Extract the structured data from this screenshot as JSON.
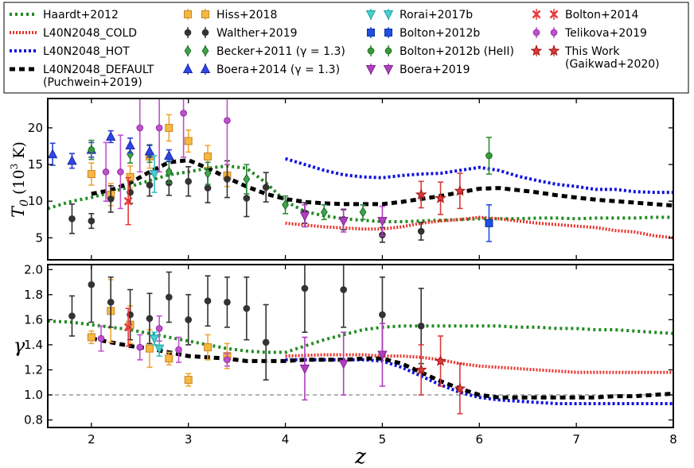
{
  "chart_data": [
    {
      "panel": "top",
      "type": "line+errorbar",
      "xlabel": "z",
      "ylabel": "T_0 (10^3 K)",
      "ylabel_main": "T",
      "ylabel_sub": "0",
      "ylabel_unit": "(10",
      "ylabel_exp": "3",
      "ylabel_tail": " K)",
      "xlim": [
        1.55,
        8.0
      ],
      "ylim": [
        2,
        24
      ],
      "yticks": [
        "5",
        "10",
        "15",
        "20"
      ],
      "lines": {
        "Haardt+2012": {
          "x": [
            1.55,
            1.8,
            2.0,
            2.2,
            2.4,
            2.6,
            2.8,
            3.0,
            3.2,
            3.4,
            3.6,
            3.8,
            4.0,
            4.2,
            4.4,
            4.6,
            4.8,
            5.0,
            5.2,
            5.4,
            5.6,
            5.8,
            6.0,
            6.2,
            6.4,
            6.6,
            6.8,
            7.0,
            7.2,
            7.4,
            7.6,
            7.8,
            8.0
          ],
          "y": [
            9.0,
            10.0,
            10.5,
            11.2,
            12.0,
            12.8,
            13.6,
            14.0,
            14.5,
            14.8,
            14.5,
            12.5,
            10.0,
            8.6,
            8.0,
            7.6,
            7.4,
            7.2,
            7.2,
            7.3,
            7.4,
            7.5,
            7.6,
            7.6,
            7.6,
            7.7,
            7.7,
            7.6,
            7.7,
            7.7,
            7.7,
            7.8,
            7.8
          ]
        },
        "L40N2048_COLD": {
          "x": [
            4.0,
            4.4,
            4.8,
            5.0,
            5.2,
            5.4,
            5.6,
            5.8,
            6.0,
            6.2,
            6.4,
            6.6,
            6.8,
            7.0,
            7.2,
            7.4,
            7.6,
            7.8,
            8.0
          ],
          "y": [
            7.0,
            6.5,
            6.2,
            6.2,
            6.5,
            7.0,
            7.3,
            7.5,
            7.8,
            7.6,
            7.3,
            7.0,
            6.8,
            6.6,
            6.4,
            6.0,
            5.8,
            5.3,
            5.0
          ]
        },
        "L40N2048_HOT": {
          "x": [
            4.0,
            4.2,
            4.4,
            4.6,
            4.8,
            5.0,
            5.2,
            5.4,
            5.6,
            5.8,
            6.0,
            6.2,
            6.4,
            6.6,
            6.8,
            7.0,
            7.2,
            7.4,
            7.6,
            7.8,
            8.0
          ],
          "y": [
            15.8,
            15.0,
            14.2,
            13.6,
            13.3,
            13.2,
            13.5,
            13.7,
            13.8,
            14.2,
            14.6,
            14.2,
            13.4,
            12.8,
            12.3,
            12.0,
            11.6,
            11.6,
            11.3,
            11.2,
            11.2
          ]
        },
        "L40N2048_DEFAULT": {
          "x": [
            2.0,
            2.2,
            2.4,
            2.6,
            2.8,
            3.0,
            3.2,
            3.4,
            3.6,
            3.8,
            4.0,
            4.2,
            4.4,
            4.6,
            4.8,
            5.0,
            5.2,
            5.4,
            5.6,
            5.8,
            6.0,
            6.2,
            6.4,
            6.6,
            6.8,
            7.0,
            7.2,
            7.4,
            7.6,
            7.8,
            8.0
          ],
          "y": [
            11.0,
            11.5,
            12.5,
            14.0,
            15.3,
            15.6,
            14.5,
            13.2,
            12.0,
            11.0,
            10.3,
            9.9,
            9.7,
            9.6,
            9.6,
            9.6,
            9.9,
            10.3,
            10.7,
            11.2,
            11.7,
            11.8,
            11.5,
            11.2,
            10.8,
            10.5,
            10.2,
            10.0,
            9.8,
            9.6,
            9.4
          ]
        }
      },
      "points": {
        "Hiss+2018": [
          [
            2.0,
            13.7,
            1.5
          ],
          [
            2.2,
            10.9,
            1.5
          ],
          [
            2.4,
            13.3,
            1.5
          ],
          [
            2.6,
            16.1,
            1.6
          ],
          [
            2.8,
            20.0,
            1.8
          ],
          [
            3.0,
            18.2,
            1.5
          ],
          [
            3.2,
            16.1,
            1.5
          ],
          [
            3.4,
            13.5,
            1.5
          ]
        ],
        "Walther+2019": [
          [
            1.8,
            7.6,
            2.0
          ],
          [
            2.0,
            7.3,
            1.0
          ],
          [
            2.2,
            10.3,
            1.8
          ],
          [
            2.4,
            11.2,
            1.5
          ],
          [
            2.6,
            12.2,
            1.5
          ],
          [
            2.8,
            12.5,
            1.7
          ],
          [
            3.0,
            12.7,
            2.0
          ],
          [
            3.2,
            11.8,
            2.0
          ],
          [
            3.4,
            13.0,
            2.5
          ],
          [
            3.6,
            10.4,
            2.5
          ],
          [
            3.8,
            11.9,
            2.0
          ],
          [
            4.2,
            8.4,
            1.4
          ],
          [
            4.6,
            7.5,
            1.4
          ],
          [
            5.0,
            5.4,
            1.0
          ],
          [
            5.4,
            5.9,
            1.2
          ]
        ],
        "Becker+2011": [
          [
            2.4,
            16.4,
            1.2
          ],
          [
            2.6,
            16.5,
            1.2
          ],
          [
            2.8,
            14.0,
            1.5
          ],
          [
            3.2,
            13.8,
            1.5
          ],
          [
            3.6,
            13.0,
            2.0
          ],
          [
            4.0,
            9.5,
            1.2
          ],
          [
            4.4,
            8.5,
            1.0
          ],
          [
            4.8,
            8.5,
            1.0
          ]
        ],
        "Boera+2014": [
          [
            1.6,
            16.4,
            1.5
          ],
          [
            1.8,
            15.5,
            1.0
          ],
          [
            2.0,
            17.0,
            1.0
          ],
          [
            2.2,
            18.8,
            0.8
          ],
          [
            2.4,
            17.6,
            1.0
          ],
          [
            2.6,
            16.8,
            0.8
          ],
          [
            2.8,
            16.2,
            0.8
          ]
        ],
        "Rorai+2017b": [
          [
            2.65,
            13.7,
            2.5
          ]
        ],
        "Bolton+2012b": [
          [
            6.1,
            7.0,
            2.5
          ]
        ],
        "Bolton+2012b (HeII)": [
          [
            2.0,
            17.0,
            1.3
          ],
          [
            6.1,
            16.2,
            2.5
          ]
        ],
        "Boera+2019": [
          [
            4.2,
            8.0,
            1.5
          ],
          [
            4.6,
            7.3,
            1.5
          ],
          [
            5.0,
            7.3,
            2.0
          ]
        ],
        "Bolton+2014": [
          [
            2.38,
            10.0,
            3.2
          ]
        ],
        "Telikova+2019": [
          [
            2.15,
            14.0,
            4.0
          ],
          [
            2.3,
            14.0,
            5.0
          ],
          [
            2.5,
            20.0,
            6.0
          ],
          [
            2.7,
            20.0,
            6.0
          ],
          [
            2.95,
            22.0,
            6.0
          ],
          [
            3.4,
            21.0,
            6.0
          ]
        ],
        "This Work (Gaikwad+2020)": [
          [
            5.4,
            10.9,
            1.8
          ],
          [
            5.6,
            10.4,
            2.2
          ],
          [
            5.8,
            11.4,
            2.4
          ]
        ]
      }
    },
    {
      "panel": "bottom",
      "type": "line+errorbar",
      "xlabel": "z",
      "ylabel": "γ",
      "xlim": [
        1.55,
        8.0
      ],
      "ylim": [
        0.74,
        2.04
      ],
      "xticks": [
        "2",
        "3",
        "4",
        "5",
        "6",
        "7",
        "8"
      ],
      "yticks": [
        "0.8",
        "1.0",
        "1.2",
        "1.4",
        "1.6",
        "1.8",
        "2.0"
      ],
      "reference_line": 1.0,
      "lines": {
        "Haardt+2012": {
          "x": [
            1.55,
            1.8,
            2.0,
            2.2,
            2.4,
            2.6,
            2.8,
            3.0,
            3.2,
            3.4,
            3.6,
            3.8,
            4.0,
            4.2,
            4.4,
            4.6,
            4.8,
            5.0,
            5.2,
            5.4,
            5.6,
            5.8,
            6.0,
            6.2,
            6.4,
            6.6,
            6.8,
            7.0,
            7.2,
            7.4,
            7.6,
            7.8,
            8.0
          ],
          "y": [
            1.59,
            1.58,
            1.56,
            1.54,
            1.52,
            1.49,
            1.46,
            1.43,
            1.4,
            1.37,
            1.35,
            1.34,
            1.34,
            1.39,
            1.44,
            1.48,
            1.52,
            1.54,
            1.55,
            1.55,
            1.55,
            1.55,
            1.55,
            1.55,
            1.54,
            1.54,
            1.53,
            1.53,
            1.52,
            1.52,
            1.51,
            1.5,
            1.49
          ]
        },
        "L40N2048_COLD": {
          "x": [
            4.0,
            4.4,
            4.8,
            5.0,
            5.2,
            5.4,
            5.6,
            5.8,
            6.0,
            6.2,
            6.4,
            6.6,
            6.8,
            7.0,
            7.2,
            7.4,
            7.6,
            7.8,
            8.0
          ],
          "y": [
            1.31,
            1.32,
            1.32,
            1.31,
            1.31,
            1.3,
            1.28,
            1.25,
            1.23,
            1.22,
            1.21,
            1.2,
            1.19,
            1.18,
            1.18,
            1.18,
            1.18,
            1.18,
            1.18
          ]
        },
        "L40N2048_HOT": {
          "x": [
            4.0,
            4.4,
            4.8,
            5.0,
            5.2,
            5.4,
            5.6,
            5.8,
            6.0,
            6.2,
            6.4,
            6.6,
            6.8,
            7.0,
            7.2,
            7.4,
            7.6,
            7.8,
            8.0
          ],
          "y": [
            1.28,
            1.28,
            1.28,
            1.27,
            1.22,
            1.15,
            1.08,
            1.02,
            0.98,
            0.96,
            0.95,
            0.94,
            0.93,
            0.93,
            0.93,
            0.93,
            0.93,
            0.93,
            0.93
          ]
        },
        "L40N2048_DEFAULT": {
          "x": [
            2.0,
            2.2,
            2.4,
            2.6,
            2.8,
            3.0,
            3.2,
            3.4,
            3.6,
            3.8,
            4.0,
            4.2,
            4.4,
            4.6,
            4.8,
            5.0,
            5.2,
            5.4,
            5.6,
            5.8,
            6.0,
            6.2,
            6.4,
            6.6,
            6.8,
            7.0,
            7.2,
            7.4,
            7.6,
            7.8,
            8.0
          ],
          "y": [
            1.45,
            1.42,
            1.39,
            1.37,
            1.34,
            1.31,
            1.3,
            1.29,
            1.27,
            1.27,
            1.27,
            1.28,
            1.28,
            1.28,
            1.29,
            1.29,
            1.25,
            1.18,
            1.11,
            1.05,
            1.0,
            0.98,
            0.98,
            0.98,
            0.98,
            0.98,
            0.98,
            0.99,
            0.99,
            1.0,
            1.01
          ]
        }
      },
      "points": {
        "Hiss+2018": [
          [
            2.0,
            1.46,
            0.05
          ],
          [
            2.2,
            1.67,
            0.25
          ],
          [
            2.4,
            1.56,
            0.15
          ],
          [
            2.6,
            1.37,
            0.15
          ],
          [
            2.8,
            1.29,
            0.05
          ],
          [
            3.0,
            1.12,
            0.05
          ],
          [
            3.2,
            1.38,
            0.1
          ],
          [
            3.4,
            1.31,
            0.1
          ]
        ],
        "Walther+2019": [
          [
            1.8,
            1.63,
            0.16
          ],
          [
            2.0,
            1.88,
            0.3
          ],
          [
            2.2,
            1.74,
            0.2
          ],
          [
            2.4,
            1.64,
            0.2
          ],
          [
            2.6,
            1.61,
            0.2
          ],
          [
            2.8,
            1.78,
            0.2
          ],
          [
            3.0,
            1.6,
            0.2
          ],
          [
            3.2,
            1.75,
            0.2
          ],
          [
            3.4,
            1.74,
            0.2
          ],
          [
            3.6,
            1.69,
            0.25
          ],
          [
            3.8,
            1.42,
            0.3
          ],
          [
            4.2,
            1.85,
            0.35
          ],
          [
            4.6,
            1.84,
            0.3
          ],
          [
            5.0,
            1.64,
            0.3
          ],
          [
            5.4,
            1.55,
            0.3
          ]
        ],
        "Becker+2011": [],
        "Boera+2014": [],
        "Rorai+2017b": [
          [
            2.65,
            1.45,
            0.05
          ],
          [
            2.7,
            1.37,
            0.06
          ]
        ],
        "Bolton+2012b": [],
        "Bolton+2012b (HeII)": [],
        "Boera+2019": [
          [
            4.2,
            1.21,
            0.25
          ],
          [
            4.6,
            1.25,
            0.25
          ],
          [
            5.0,
            1.32,
            0.25
          ]
        ],
        "Bolton+2014": [
          [
            2.38,
            1.54,
            0.15
          ]
        ],
        "Telikova+2019": [
          [
            2.1,
            1.45,
            0.1
          ],
          [
            2.5,
            1.38,
            0.1
          ],
          [
            2.7,
            1.53,
            0.1
          ],
          [
            2.9,
            1.36,
            0.1
          ],
          [
            3.4,
            1.28,
            0.05
          ]
        ],
        "This Work (Gaikwad+2020)": [
          [
            5.4,
            1.2,
            0.2
          ],
          [
            5.6,
            1.27,
            0.2
          ],
          [
            5.8,
            1.05,
            0.2
          ]
        ]
      }
    }
  ],
  "legend": [
    {
      "label": "Haardt+2012",
      "kind": "line",
      "key": "Haardt+2012",
      "color": "#228b22",
      "dash": "3,4",
      "width": 4
    },
    {
      "label": "L40N2048_COLD",
      "kind": "line",
      "key": "L40N2048_COLD",
      "color": "#e8322a",
      "dash": "2,2",
      "width": 4
    },
    {
      "label": "L40N2048_HOT",
      "kind": "line",
      "key": "L40N2048_HOT",
      "color": "#1010e0",
      "dash": "3,3",
      "width": 4
    },
    {
      "label": "L40N2048_DEFAULT",
      "label2": "(Puchwein+2019)",
      "kind": "line",
      "key": "L40N2048_DEFAULT",
      "color": "#000000",
      "dash": "7,5",
      "width": 5
    },
    {
      "label": "Hiss+2018",
      "kind": "marker",
      "key": "Hiss+2018",
      "marker": "square",
      "color": "#f5b841",
      "edge": "#c8862a"
    },
    {
      "label": "Walther+2019",
      "kind": "marker",
      "key": "Walther+2019",
      "marker": "circle",
      "color": "#333333",
      "edge": "#333333"
    },
    {
      "label": "Becker+2011 (γ = 1.3)",
      "kind": "marker",
      "key": "Becker+2011",
      "marker": "diamond",
      "color": "#3fa34a",
      "edge": "#1d6b28"
    },
    {
      "label": "Boera+2014 (γ = 1.3)",
      "kind": "marker",
      "key": "Boera+2014",
      "marker": "triangle-up",
      "color": "#3046e6",
      "edge": "#1a28a8"
    },
    {
      "label": "Rorai+2017b",
      "kind": "marker",
      "key": "Rorai+2017b",
      "marker": "triangle-down",
      "color": "#43d0d0",
      "edge": "#22a0a0"
    },
    {
      "label": "Bolton+2012b",
      "kind": "marker",
      "key": "Bolton+2012b",
      "marker": "square",
      "color": "#2050e0",
      "edge": "#1030a0"
    },
    {
      "label": "Bolton+2012b (HeII)",
      "kind": "marker",
      "key": "Bolton+2012b (HeII)",
      "marker": "circle",
      "color": "#3a9b3a",
      "edge": "#1f6b1f"
    },
    {
      "label": "Boera+2019",
      "kind": "marker",
      "key": "Boera+2019",
      "marker": "triangle-down",
      "color": "#b040c0",
      "edge": "#802090"
    },
    {
      "label": "Bolton+2014",
      "kind": "marker",
      "key": "Bolton+2014",
      "marker": "x",
      "color": "#e83a3a",
      "edge": "#e83a3a"
    },
    {
      "label": "Telikova+2019",
      "kind": "marker",
      "key": "Telikova+2019",
      "marker": "circle",
      "color": "#c050d0",
      "edge": "#9030a0"
    },
    {
      "label": "This Work",
      "label2": "(Gaikwad+2020)",
      "kind": "marker",
      "key": "This Work (Gaikwad+2020)",
      "marker": "star",
      "color": "#d93a3a",
      "edge": "#a01818"
    }
  ],
  "errorbar_colors": {
    "Hiss+2018": "#f0a830",
    "Walther+2019": "#333333",
    "Becker+2011": "#2e8b3a",
    "Boera+2014": "#2a3fd8",
    "Rorai+2017b": "#30c0c0",
    "Bolton+2012b": "#2050e0",
    "Bolton+2012b (HeII)": "#2f8f2f",
    "Boera+2019": "#b040c0",
    "Bolton+2014": "#e83a3a",
    "Telikova+2019": "#c050d0",
    "This Work (Gaikwad+2020)": "#d93a3a"
  }
}
